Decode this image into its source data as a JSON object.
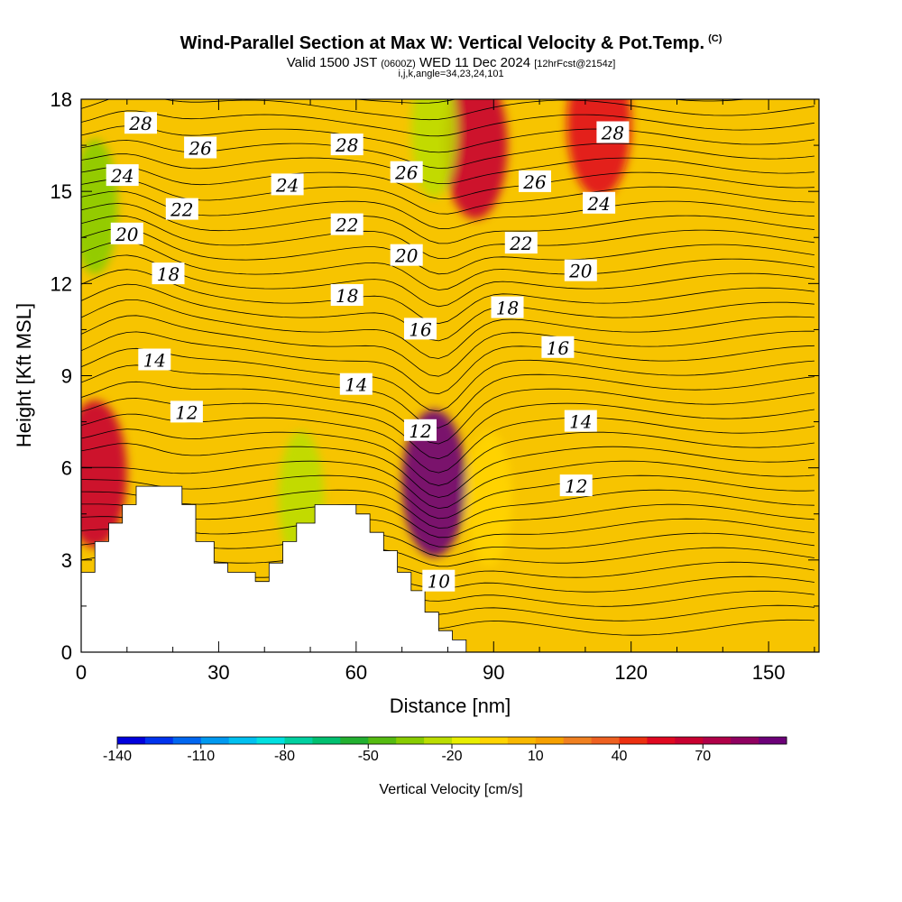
{
  "header": {
    "title": "Wind-Parallel Section at Max W: Vertical Velocity & Pot.Temp.",
    "title_mark": "(C)",
    "valid_prefix": "Valid 1500 JST",
    "valid_utc": "(0600Z)",
    "valid_date": "WED 11 Dec 2024",
    "forecast": "[12hrFcst@2154z]",
    "params": "i,j,k,angle=34,23,24,101"
  },
  "colors": {
    "background_field": "#f7c400",
    "terrain": "#ffffff",
    "contour": "#000000"
  },
  "chart_data": {
    "type": "heatmap",
    "xlabel": "Distance [nm]",
    "ylabel": "Height [Kft MSL]",
    "xlim": [
      0,
      161
    ],
    "ylim": [
      0,
      18
    ],
    "x_ticks": [
      "0",
      "30",
      "60",
      "90",
      "120",
      "150"
    ],
    "y_ticks": [
      "0",
      "3",
      "6",
      "9",
      "12",
      "15",
      "18"
    ],
    "colorbar": {
      "label": "Vertical Velocity [cm/s]",
      "tick_labels": [
        "-140",
        "-110",
        "-80",
        "-50",
        "-20",
        "10",
        "40",
        "70"
      ],
      "colors": [
        "#0000dd",
        "#0033ee",
        "#0066f0",
        "#0099f0",
        "#00c0f0",
        "#00e0e0",
        "#00d0a0",
        "#00c070",
        "#22b030",
        "#55bb10",
        "#88cc00",
        "#bbdd00",
        "#e8ee00",
        "#ffd400",
        "#f8b800",
        "#f6a000",
        "#f08020",
        "#ee6020",
        "#ec3010",
        "#e00820",
        "#c80030",
        "#b00048",
        "#900060",
        "#6c0078"
      ]
    },
    "contour_labels": [
      {
        "text": "28",
        "x": 13,
        "y": 17.2
      },
      {
        "text": "26",
        "x": 26,
        "y": 16.4
      },
      {
        "text": "24",
        "x": 9,
        "y": 15.5
      },
      {
        "text": "22",
        "x": 22,
        "y": 14.4
      },
      {
        "text": "20",
        "x": 10,
        "y": 13.6
      },
      {
        "text": "18",
        "x": 19,
        "y": 12.3
      },
      {
        "text": "14",
        "x": 16,
        "y": 9.5
      },
      {
        "text": "12",
        "x": 23,
        "y": 7.8
      },
      {
        "text": "24",
        "x": 45,
        "y": 15.2
      },
      {
        "text": "28",
        "x": 58,
        "y": 16.5
      },
      {
        "text": "22",
        "x": 58,
        "y": 13.9
      },
      {
        "text": "18",
        "x": 58,
        "y": 11.6
      },
      {
        "text": "14",
        "x": 60,
        "y": 8.7
      },
      {
        "text": "26",
        "x": 71,
        "y": 15.6
      },
      {
        "text": "20",
        "x": 71,
        "y": 12.9
      },
      {
        "text": "16",
        "x": 74,
        "y": 10.5
      },
      {
        "text": "12",
        "x": 74,
        "y": 7.2
      },
      {
        "text": "10",
        "x": 78,
        "y": 2.3
      },
      {
        "text": "22",
        "x": 96,
        "y": 13.3
      },
      {
        "text": "18",
        "x": 93,
        "y": 11.2
      },
      {
        "text": "26",
        "x": 99,
        "y": 15.3
      },
      {
        "text": "16",
        "x": 104,
        "y": 9.9
      },
      {
        "text": "14",
        "x": 109,
        "y": 7.5
      },
      {
        "text": "12",
        "x": 108,
        "y": 5.4
      },
      {
        "text": "20",
        "x": 109,
        "y": 12.4
      },
      {
        "text": "24",
        "x": 113,
        "y": 14.6
      },
      {
        "text": "28",
        "x": 116,
        "y": 16.9
      }
    ],
    "terrain_profile": [
      {
        "x": 0,
        "y": 2.6
      },
      {
        "x": 3,
        "y": 2.6
      },
      {
        "x": 3,
        "y": 3.6
      },
      {
        "x": 6,
        "y": 3.6
      },
      {
        "x": 6,
        "y": 4.2
      },
      {
        "x": 9,
        "y": 4.2
      },
      {
        "x": 9,
        "y": 4.8
      },
      {
        "x": 12,
        "y": 4.8
      },
      {
        "x": 12,
        "y": 5.4
      },
      {
        "x": 22,
        "y": 5.4
      },
      {
        "x": 22,
        "y": 4.8
      },
      {
        "x": 25,
        "y": 4.8
      },
      {
        "x": 25,
        "y": 3.6
      },
      {
        "x": 29,
        "y": 3.6
      },
      {
        "x": 29,
        "y": 2.9
      },
      {
        "x": 32,
        "y": 2.9
      },
      {
        "x": 32,
        "y": 2.6
      },
      {
        "x": 38,
        "y": 2.6
      },
      {
        "x": 38,
        "y": 2.3
      },
      {
        "x": 41,
        "y": 2.3
      },
      {
        "x": 41,
        "y": 2.9
      },
      {
        "x": 44,
        "y": 2.9
      },
      {
        "x": 44,
        "y": 3.6
      },
      {
        "x": 47,
        "y": 3.6
      },
      {
        "x": 47,
        "y": 4.2
      },
      {
        "x": 51,
        "y": 4.2
      },
      {
        "x": 51,
        "y": 4.8
      },
      {
        "x": 60,
        "y": 4.8
      },
      {
        "x": 60,
        "y": 4.5
      },
      {
        "x": 63,
        "y": 4.5
      },
      {
        "x": 63,
        "y": 3.9
      },
      {
        "x": 66,
        "y": 3.9
      },
      {
        "x": 66,
        "y": 3.3
      },
      {
        "x": 69,
        "y": 3.3
      },
      {
        "x": 69,
        "y": 2.6
      },
      {
        "x": 72,
        "y": 2.6
      },
      {
        "x": 72,
        "y": 2.0
      },
      {
        "x": 75,
        "y": 2.0
      },
      {
        "x": 75,
        "y": 1.3
      },
      {
        "x": 78,
        "y": 1.3
      },
      {
        "x": 78,
        "y": 0.7
      },
      {
        "x": 81,
        "y": 0.7
      },
      {
        "x": 81,
        "y": 0.4
      },
      {
        "x": 84,
        "y": 0.4
      },
      {
        "x": 84,
        "y": 0
      }
    ],
    "velocity_features": [
      {
        "kind": "updraft",
        "x": 77,
        "y": 5.5,
        "w_cm_s": 85
      },
      {
        "kind": "updraft",
        "x": 86,
        "y": 16.5,
        "w_cm_s": 45
      },
      {
        "kind": "updraft",
        "x": 3,
        "y": 5.8,
        "w_cm_s": 40
      },
      {
        "kind": "updraft",
        "x": 113,
        "y": 17.2,
        "w_cm_s": 30
      },
      {
        "kind": "downdraft",
        "x": 3,
        "y": 14.5,
        "w_cm_s": -55
      },
      {
        "kind": "downdraft",
        "x": 77,
        "y": 17,
        "w_cm_s": -50
      },
      {
        "kind": "downdraft",
        "x": 48,
        "y": 5.0,
        "w_cm_s": -45
      },
      {
        "kind": "downdraft",
        "x": 89,
        "y": 5.0,
        "w_cm_s": -30
      }
    ]
  }
}
